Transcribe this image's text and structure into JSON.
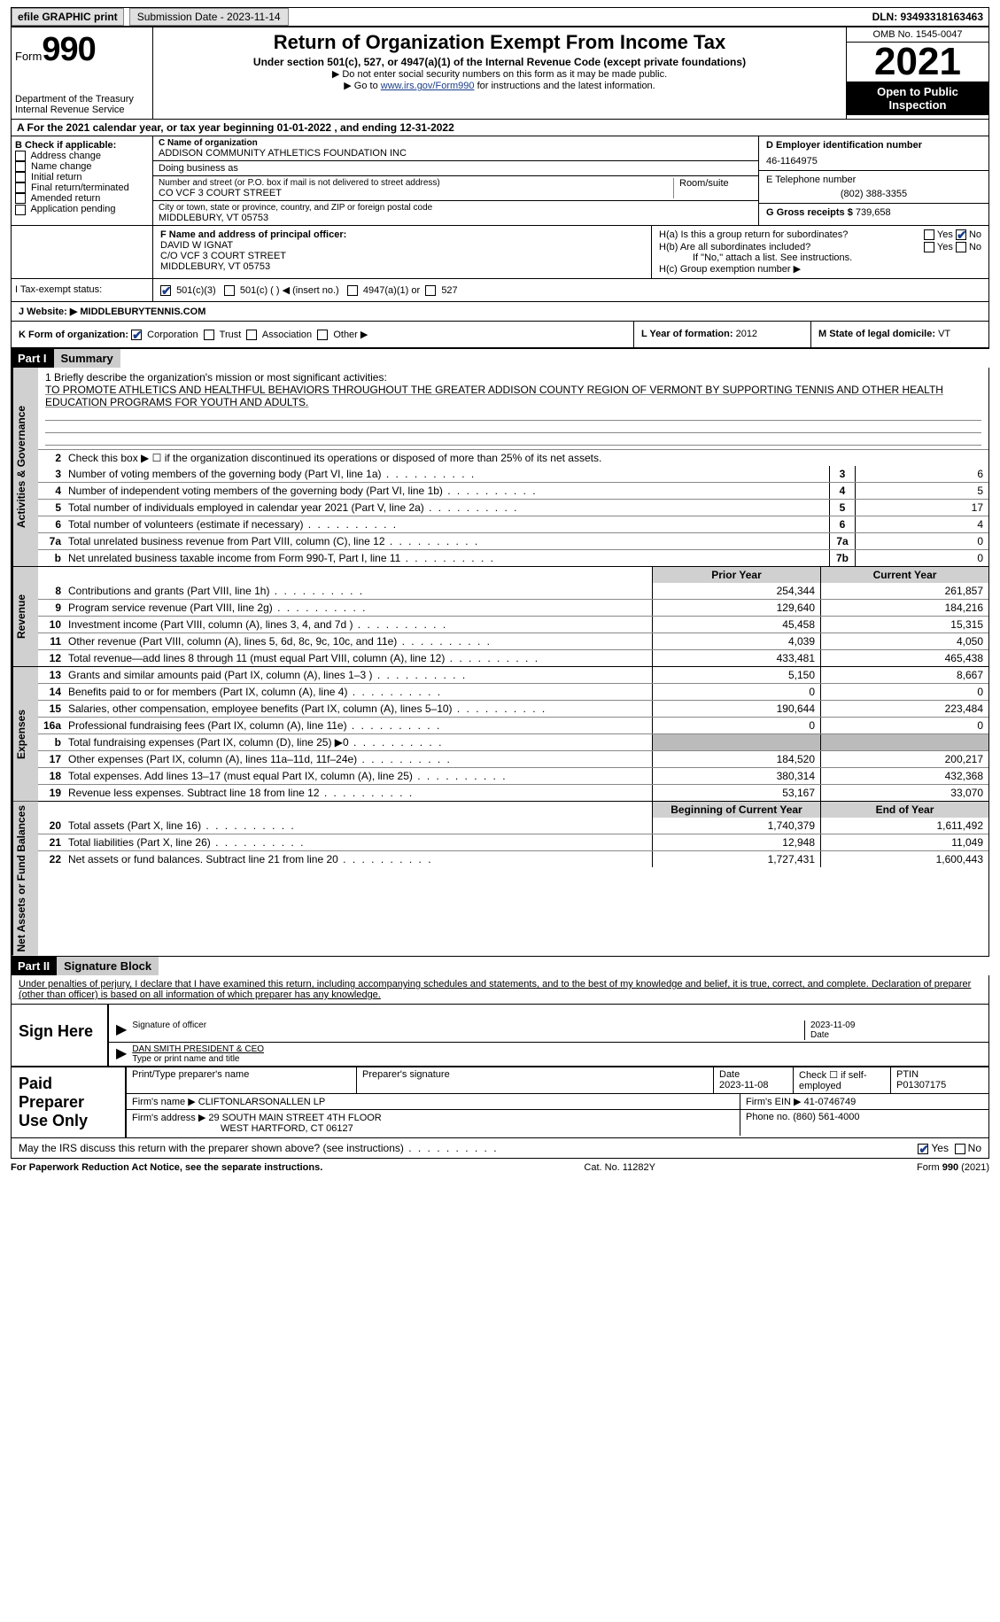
{
  "top": {
    "efile": "efile GRAPHIC print",
    "subdate_label": "Submission Date - 2023-11-14",
    "dln": "DLN: 93493318163463"
  },
  "header": {
    "form_label": "Form",
    "form_number": "990",
    "dept": "Department of the Treasury\nInternal Revenue Service",
    "title": "Return of Organization Exempt From Income Tax",
    "sub": "Under section 501(c), 527, or 4947(a)(1) of the Internal Revenue Code (except private foundations)",
    "note1": "▶ Do not enter social security numbers on this form as it may be made public.",
    "note2_pre": "▶ Go to ",
    "note2_link": "www.irs.gov/Form990",
    "note2_post": " for instructions and the latest information.",
    "omb": "OMB No. 1545-0047",
    "year": "2021",
    "open": "Open to Public Inspection"
  },
  "cal_year": "A For the 2021 calendar year, or tax year beginning 01-01-2022   , and ending 12-31-2022",
  "box_b": {
    "label": "B Check if applicable:",
    "items": [
      "Address change",
      "Name change",
      "Initial return",
      "Final return/terminated",
      "Amended return",
      "Application pending"
    ]
  },
  "box_c": {
    "name_label": "C Name of organization",
    "name": "ADDISON COMMUNITY ATHLETICS FOUNDATION INC",
    "dba_label": "Doing business as",
    "street_label": "Number and street (or P.O. box if mail is not delivered to street address)",
    "street": "CO VCF 3 COURT STREET",
    "room_label": "Room/suite",
    "city_label": "City or town, state or province, country, and ZIP or foreign postal code",
    "city": "MIDDLEBURY, VT  05753"
  },
  "box_d": {
    "ein_label": "D Employer identification number",
    "ein": "46-1164975",
    "phone_label": "E Telephone number",
    "phone": "(802) 388-3355",
    "gross_label": "G Gross receipts $",
    "gross": "739,658"
  },
  "box_f": {
    "label": "F  Name and address of principal officer:",
    "name": "DAVID W IGNAT",
    "street": "C/O VCF 3 COURT STREET",
    "city": "MIDDLEBURY, VT  05753"
  },
  "box_h": {
    "a_label": "H(a)  Is this a group return for subordinates?",
    "b_label": "H(b)  Are all subordinates included?",
    "b_note": "If \"No,\" attach a list. See instructions.",
    "c_label": "H(c)  Group exemption number ▶"
  },
  "tax_exempt": {
    "label": "I  Tax-exempt status:",
    "opt1": "501(c)(3)",
    "opt2": "501(c) (  ) ◀ (insert no.)",
    "opt3": "4947(a)(1) or",
    "opt4": "527"
  },
  "website": {
    "label": "J  Website: ▶",
    "value": "MIDDLEBURYTENNIS.COM"
  },
  "box_k": {
    "label": "K Form of organization:",
    "opts": [
      "Corporation",
      "Trust",
      "Association",
      "Other ▶"
    ],
    "l_label": "L Year of formation:",
    "l_val": "2012",
    "m_label": "M State of legal domicile:",
    "m_val": "VT"
  },
  "part1": {
    "hdr": "Part I",
    "title": "Summary"
  },
  "mission": {
    "label": "1  Briefly describe the organization's mission or most significant activities:",
    "text": "TO PROMOTE ATHLETICS AND HEALTHFUL BEHAVIORS THROUGHOUT THE GREATER ADDISON COUNTY REGION OF VERMONT BY SUPPORTING TENNIS AND OTHER HEALTH EDUCATION PROGRAMS FOR YOUTH AND ADULTS."
  },
  "line2": "Check this box ▶ ☐ if the organization discontinued its operations or disposed of more than 25% of its net assets.",
  "gov_lines": [
    {
      "n": "3",
      "t": "Number of voting members of the governing body (Part VI, line 1a)",
      "box": "3",
      "v": "6"
    },
    {
      "n": "4",
      "t": "Number of independent voting members of the governing body (Part VI, line 1b)",
      "box": "4",
      "v": "5"
    },
    {
      "n": "5",
      "t": "Total number of individuals employed in calendar year 2021 (Part V, line 2a)",
      "box": "5",
      "v": "17"
    },
    {
      "n": "6",
      "t": "Total number of volunteers (estimate if necessary)",
      "box": "6",
      "v": "4"
    },
    {
      "n": "7a",
      "t": "Total unrelated business revenue from Part VIII, column (C), line 12",
      "box": "7a",
      "v": "0"
    },
    {
      "n": "b",
      "t": "Net unrelated business taxable income from Form 990-T, Part I, line 11",
      "box": "7b",
      "v": "0"
    }
  ],
  "col_hdrs": {
    "prior": "Prior Year",
    "current": "Current Year",
    "begin": "Beginning of Current Year",
    "end": "End of Year"
  },
  "revenue": [
    {
      "n": "8",
      "t": "Contributions and grants (Part VIII, line 1h)",
      "p": "254,344",
      "c": "261,857"
    },
    {
      "n": "9",
      "t": "Program service revenue (Part VIII, line 2g)",
      "p": "129,640",
      "c": "184,216"
    },
    {
      "n": "10",
      "t": "Investment income (Part VIII, column (A), lines 3, 4, and 7d )",
      "p": "45,458",
      "c": "15,315"
    },
    {
      "n": "11",
      "t": "Other revenue (Part VIII, column (A), lines 5, 6d, 8c, 9c, 10c, and 11e)",
      "p": "4,039",
      "c": "4,050"
    },
    {
      "n": "12",
      "t": "Total revenue—add lines 8 through 11 (must equal Part VIII, column (A), line 12)",
      "p": "433,481",
      "c": "465,438"
    }
  ],
  "expenses": [
    {
      "n": "13",
      "t": "Grants and similar amounts paid (Part IX, column (A), lines 1–3 )",
      "p": "5,150",
      "c": "8,667"
    },
    {
      "n": "14",
      "t": "Benefits paid to or for members (Part IX, column (A), line 4)",
      "p": "0",
      "c": "0"
    },
    {
      "n": "15",
      "t": "Salaries, other compensation, employee benefits (Part IX, column (A), lines 5–10)",
      "p": "190,644",
      "c": "223,484"
    },
    {
      "n": "16a",
      "t": "Professional fundraising fees (Part IX, column (A), line 11e)",
      "p": "0",
      "c": "0"
    },
    {
      "n": "b",
      "t": "Total fundraising expenses (Part IX, column (D), line 25) ▶0",
      "p": "",
      "c": "",
      "shaded": true
    },
    {
      "n": "17",
      "t": "Other expenses (Part IX, column (A), lines 11a–11d, 11f–24e)",
      "p": "184,520",
      "c": "200,217"
    },
    {
      "n": "18",
      "t": "Total expenses. Add lines 13–17 (must equal Part IX, column (A), line 25)",
      "p": "380,314",
      "c": "432,368"
    },
    {
      "n": "19",
      "t": "Revenue less expenses. Subtract line 18 from line 12",
      "p": "53,167",
      "c": "33,070"
    }
  ],
  "net_assets": [
    {
      "n": "20",
      "t": "Total assets (Part X, line 16)",
      "p": "1,740,379",
      "c": "1,611,492"
    },
    {
      "n": "21",
      "t": "Total liabilities (Part X, line 26)",
      "p": "12,948",
      "c": "11,049"
    },
    {
      "n": "22",
      "t": "Net assets or fund balances. Subtract line 21 from line 20",
      "p": "1,727,431",
      "c": "1,600,443"
    }
  ],
  "part2": {
    "hdr": "Part II",
    "title": "Signature Block"
  },
  "sig": {
    "perjury": "Under penalties of perjury, I declare that I have examined this return, including accompanying schedules and statements, and to the best of my knowledge and belief, it is true, correct, and complete. Declaration of preparer (other than officer) is based on all information of which preparer has any knowledge.",
    "sign_here": "Sign Here",
    "sig_label": "Signature of officer",
    "date": "2023-11-09",
    "date_label": "Date",
    "name": "DAN SMITH  PRESIDENT & CEO",
    "name_label": "Type or print name and title"
  },
  "paid": {
    "label": "Paid Preparer Use Only",
    "print_label": "Print/Type preparer's name",
    "sig_label": "Preparer's signature",
    "date_label": "Date",
    "date": "2023-11-08",
    "check_label": "Check ☐ if self-employed",
    "ptin_label": "PTIN",
    "ptin": "P01307175",
    "firm_name_label": "Firm's name    ▶",
    "firm_name": "CLIFTONLARSONALLEN LP",
    "firm_ein_label": "Firm's EIN ▶",
    "firm_ein": "41-0746749",
    "firm_addr_label": "Firm's address ▶",
    "firm_addr1": "29 SOUTH MAIN STREET 4TH FLOOR",
    "firm_addr2": "WEST HARTFORD, CT  06127",
    "phone_label": "Phone no.",
    "phone": "(860) 561-4000"
  },
  "discuss": "May the IRS discuss this return with the preparer shown above? (see instructions)",
  "footer": {
    "paperwork": "For Paperwork Reduction Act Notice, see the separate instructions.",
    "cat": "Cat. No. 11282Y",
    "form": "Form 990 (2021)"
  },
  "side_labels": {
    "gov": "Activities & Governance",
    "rev": "Revenue",
    "exp": "Expenses",
    "net": "Net Assets or Fund Balances"
  }
}
